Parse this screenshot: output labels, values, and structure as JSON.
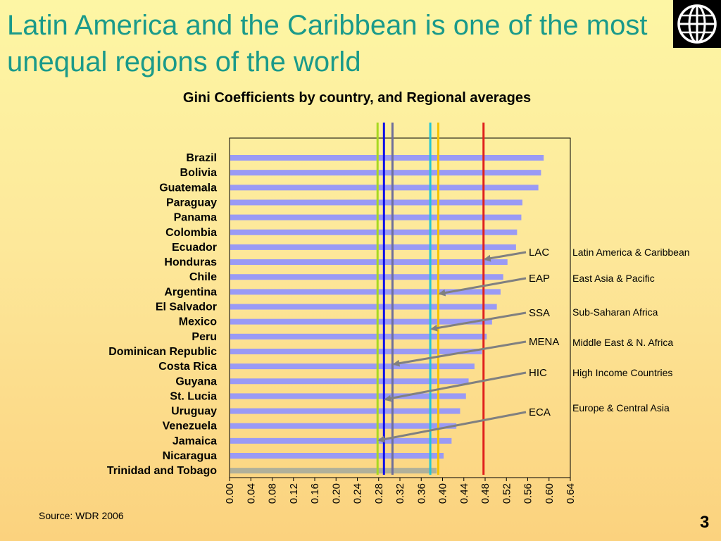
{
  "slide": {
    "title": "Latin America and the Caribbean is one of the most unequal regions of the world",
    "source": "Source: WDR 2006",
    "slide_number": "3",
    "logo_icon": "world-bank-globe-icon"
  },
  "colors": {
    "title": "#1a9a8a",
    "bar": "#9a9af5",
    "bar_last": "#b0b09a",
    "arrow": "#808080"
  },
  "chart_data": {
    "type": "bar",
    "orientation": "horizontal",
    "title": "Gini Coefficients by country, and Regional averages",
    "categories": [
      "Brazil",
      "Bolivia",
      "Guatemala",
      "Paraguay",
      "Panama",
      "Colombia",
      "Ecuador",
      "Honduras",
      "Chile",
      "Argentina",
      "El Salvador",
      "Mexico",
      "Peru",
      "Dominican Republic",
      "Costa Rica",
      "Guyana",
      "St. Lucia",
      "Uruguay",
      "Venezuela",
      "Jamaica",
      "Nicaragua",
      "Trinidad and Tobago"
    ],
    "values": [
      0.59,
      0.585,
      0.58,
      0.55,
      0.548,
      0.54,
      0.538,
      0.522,
      0.514,
      0.509,
      0.502,
      0.493,
      0.483,
      0.474,
      0.46,
      0.449,
      0.444,
      0.433,
      0.426,
      0.417,
      0.402,
      0.389
    ],
    "xlim": [
      0,
      0.64
    ],
    "xticks": [
      "0.00",
      "0.04",
      "0.08",
      "0.12",
      "0.16",
      "0.20",
      "0.24",
      "0.28",
      "0.32",
      "0.36",
      "0.40",
      "0.44",
      "0.48",
      "0.52",
      "0.56",
      "0.60",
      "0.64"
    ],
    "regional_averages": [
      {
        "abbr": "LAC",
        "name": "Latin America & Caribbean",
        "value": 0.477,
        "color": "#e0201c"
      },
      {
        "abbr": "EAP",
        "name": "East Asia & Pacific",
        "value": 0.392,
        "color": "#f5c400"
      },
      {
        "abbr": "SSA",
        "name": "Sub-Saharan Africa",
        "value": 0.377,
        "color": "#22c4d6"
      },
      {
        "abbr": "MENA",
        "name": "Middle East & N. Africa",
        "value": 0.306,
        "color": "#6e6e9a"
      },
      {
        "abbr": "HIC",
        "name": "High Income Countries",
        "value": 0.29,
        "color": "#1010e8"
      },
      {
        "abbr": "ECA",
        "name": "Europe & Central Asia",
        "value": 0.278,
        "color": "#a8d820"
      }
    ]
  }
}
